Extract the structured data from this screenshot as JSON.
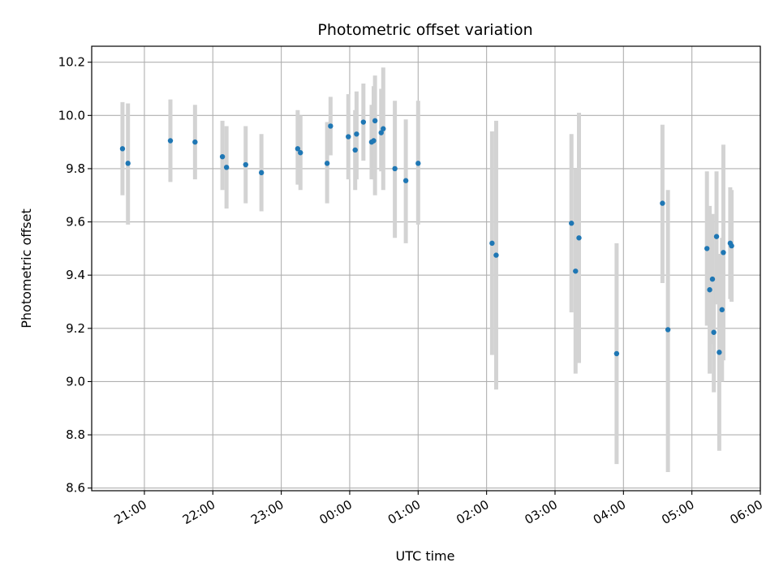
{
  "chart_data": {
    "type": "scatter",
    "title": "Photometric offset variation",
    "xlabel": "UTC time",
    "ylabel": "Photometric offset",
    "x_unit": "hours since 21:00 UTC",
    "xlim": [
      -0.77,
      9.0
    ],
    "ylim": [
      8.59,
      10.26
    ],
    "grid": true,
    "x_ticks": [
      {
        "value": 0,
        "label": "21:00"
      },
      {
        "value": 1,
        "label": "22:00"
      },
      {
        "value": 2,
        "label": "23:00"
      },
      {
        "value": 3,
        "label": "00:00"
      },
      {
        "value": 4,
        "label": "01:00"
      },
      {
        "value": 5,
        "label": "02:00"
      },
      {
        "value": 6,
        "label": "03:00"
      },
      {
        "value": 7,
        "label": "04:00"
      },
      {
        "value": 8,
        "label": "05:00"
      },
      {
        "value": 9,
        "label": "06:00"
      }
    ],
    "y_ticks": [
      {
        "value": 8.6,
        "label": "8.6"
      },
      {
        "value": 8.8,
        "label": "8.8"
      },
      {
        "value": 9.0,
        "label": "9.0"
      },
      {
        "value": 9.2,
        "label": "9.2"
      },
      {
        "value": 9.4,
        "label": "9.4"
      },
      {
        "value": 9.6,
        "label": "9.6"
      },
      {
        "value": 9.8,
        "label": "9.8"
      },
      {
        "value": 10.0,
        "label": "10.0"
      },
      {
        "value": 10.2,
        "label": "10.2"
      }
    ],
    "point_color": "#1f77b4",
    "errorbar_color": "#d3d3d3",
    "points": [
      {
        "x": -0.32,
        "y": 9.875,
        "lo": 9.7,
        "hi": 10.05
      },
      {
        "x": -0.24,
        "y": 9.82,
        "lo": 9.59,
        "hi": 10.045
      },
      {
        "x": 0.38,
        "y": 9.905,
        "lo": 9.75,
        "hi": 10.06
      },
      {
        "x": 0.74,
        "y": 9.9,
        "lo": 9.76,
        "hi": 10.04
      },
      {
        "x": 1.14,
        "y": 9.845,
        "lo": 9.72,
        "hi": 9.98
      },
      {
        "x": 1.2,
        "y": 9.805,
        "lo": 9.65,
        "hi": 9.96
      },
      {
        "x": 1.48,
        "y": 9.815,
        "lo": 9.67,
        "hi": 9.96
      },
      {
        "x": 1.71,
        "y": 9.785,
        "lo": 9.64,
        "hi": 9.93
      },
      {
        "x": 2.24,
        "y": 9.875,
        "lo": 9.74,
        "hi": 10.02
      },
      {
        "x": 2.28,
        "y": 9.86,
        "lo": 9.72,
        "hi": 10.0
      },
      {
        "x": 2.67,
        "y": 9.82,
        "lo": 9.67,
        "hi": 9.975
      },
      {
        "x": 2.72,
        "y": 9.96,
        "lo": 9.85,
        "hi": 10.07
      },
      {
        "x": 2.98,
        "y": 9.92,
        "lo": 9.76,
        "hi": 10.08
      },
      {
        "x": 3.08,
        "y": 9.87,
        "lo": 9.72,
        "hi": 10.02
      },
      {
        "x": 3.1,
        "y": 9.93,
        "lo": 9.76,
        "hi": 10.09
      },
      {
        "x": 3.2,
        "y": 9.975,
        "lo": 9.83,
        "hi": 10.12
      },
      {
        "x": 3.32,
        "y": 9.9,
        "lo": 9.76,
        "hi": 10.04
      },
      {
        "x": 3.35,
        "y": 9.905,
        "lo": 9.76,
        "hi": 10.11
      },
      {
        "x": 3.37,
        "y": 9.98,
        "lo": 9.7,
        "hi": 10.15
      },
      {
        "x": 3.46,
        "y": 9.935,
        "lo": 9.79,
        "hi": 10.1
      },
      {
        "x": 3.49,
        "y": 9.95,
        "lo": 9.72,
        "hi": 10.18
      },
      {
        "x": 3.66,
        "y": 9.8,
        "lo": 9.54,
        "hi": 10.055
      },
      {
        "x": 3.82,
        "y": 9.755,
        "lo": 9.52,
        "hi": 9.985
      },
      {
        "x": 4.0,
        "y": 9.82,
        "lo": 9.59,
        "hi": 10.055
      },
      {
        "x": 5.08,
        "y": 9.52,
        "lo": 9.1,
        "hi": 9.94
      },
      {
        "x": 5.14,
        "y": 9.475,
        "lo": 8.97,
        "hi": 9.98
      },
      {
        "x": 6.24,
        "y": 9.595,
        "lo": 9.26,
        "hi": 9.93
      },
      {
        "x": 6.3,
        "y": 9.415,
        "lo": 9.03,
        "hi": 9.8
      },
      {
        "x": 6.35,
        "y": 9.54,
        "lo": 9.07,
        "hi": 10.01
      },
      {
        "x": 6.9,
        "y": 9.105,
        "lo": 8.69,
        "hi": 9.52
      },
      {
        "x": 7.57,
        "y": 9.67,
        "lo": 9.37,
        "hi": 9.965
      },
      {
        "x": 7.65,
        "y": 9.195,
        "lo": 8.66,
        "hi": 9.72
      },
      {
        "x": 8.22,
        "y": 9.5,
        "lo": 9.21,
        "hi": 9.79
      },
      {
        "x": 8.26,
        "y": 9.345,
        "lo": 9.03,
        "hi": 9.66
      },
      {
        "x": 8.3,
        "y": 9.385,
        "lo": 9.14,
        "hi": 9.63
      },
      {
        "x": 8.32,
        "y": 9.185,
        "lo": 8.96,
        "hi": 9.4
      },
      {
        "x": 8.36,
        "y": 9.545,
        "lo": 9.29,
        "hi": 9.79
      },
      {
        "x": 8.4,
        "y": 9.11,
        "lo": 8.74,
        "hi": 9.48
      },
      {
        "x": 8.44,
        "y": 9.27,
        "lo": 9.0,
        "hi": 9.54
      },
      {
        "x": 8.46,
        "y": 9.485,
        "lo": 9.08,
        "hi": 9.89
      },
      {
        "x": 8.56,
        "y": 9.52,
        "lo": 9.31,
        "hi": 9.73
      },
      {
        "x": 8.58,
        "y": 9.51,
        "lo": 9.3,
        "hi": 9.72
      }
    ]
  }
}
